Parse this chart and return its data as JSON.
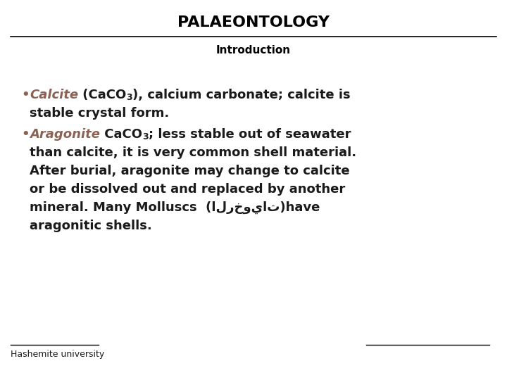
{
  "title": "PALAEONTOLOGY",
  "subtitle": "Introduction",
  "background_color": "#ffffff",
  "title_color": "#000000",
  "subtitle_color": "#000000",
  "body_color": "#1a1a1a",
  "calcite_color": "#8B6355",
  "aragonite_color": "#8B6355",
  "footer_text": "Hashemite university",
  "line_color": "#000000",
  "title_fontsize": 16,
  "subtitle_fontsize": 11,
  "body_fontsize": 13,
  "footer_fontsize": 9
}
